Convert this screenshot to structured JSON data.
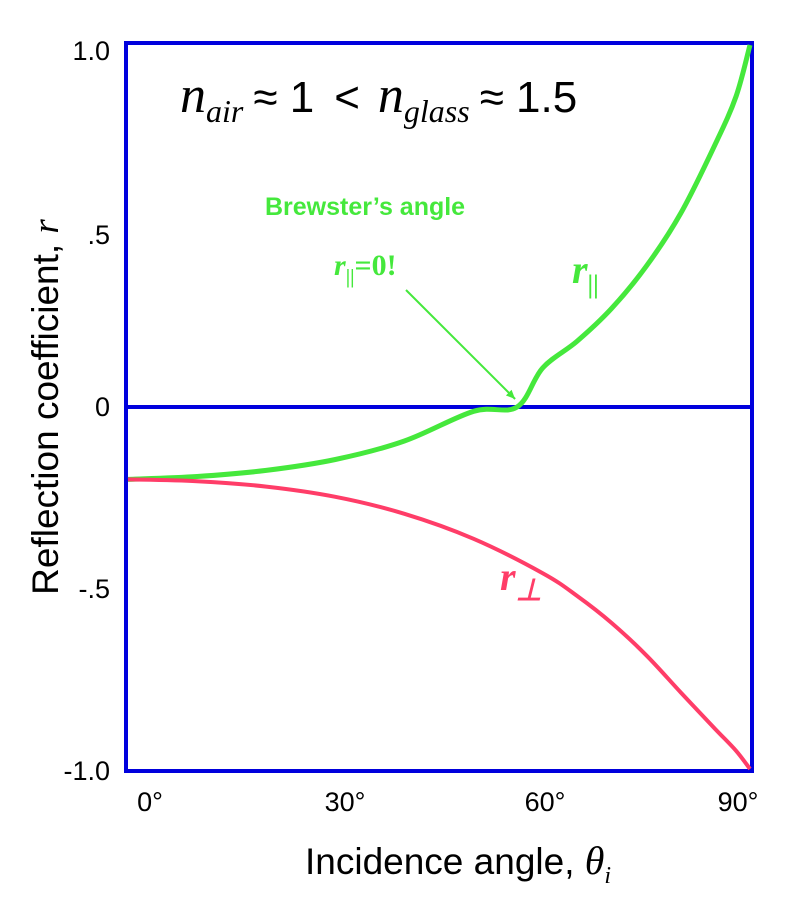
{
  "chart_data": {
    "type": "line",
    "xlabel": "Incidence angle,",
    "xlabel_symbol": "θ",
    "xlabel_symbol_sub": "i",
    "ylabel": "Reflection coefficient,",
    "ylabel_symbol": "r",
    "xlim": [
      0,
      90
    ],
    "ylim": [
      -1.0,
      1.0
    ],
    "x_ticks": [
      {
        "value": 0,
        "label": "0°"
      },
      {
        "value": 30,
        "label": "30°"
      },
      {
        "value": 60,
        "label": "60°"
      },
      {
        "value": 90,
        "label": "90°"
      }
    ],
    "y_ticks": [
      {
        "value": 1.0,
        "label": "1.0"
      },
      {
        "value": 0.5,
        "label": ".5"
      },
      {
        "value": 0,
        "label": "0"
      },
      {
        "value": -0.5,
        "label": "-.5"
      },
      {
        "value": -1.0,
        "label": "-1.0"
      }
    ],
    "equation": {
      "n1_sym": "n",
      "n1_sub": "air",
      "rel1": "≈ 1",
      "lt": "<",
      "n2_sym": "n",
      "n2_sub": "glass",
      "rel2": "≈ 1.5"
    },
    "zero_line": true,
    "grid": false,
    "series": [
      {
        "label_main": "r",
        "label_sub": "||",
        "color": "#45e83c",
        "x": [
          0,
          10,
          20,
          30,
          40,
          50,
          56.3,
          60,
          65,
          70,
          75,
          80,
          85,
          88,
          90
        ],
        "y": [
          -0.2,
          -0.192,
          -0.175,
          -0.145,
          -0.094,
          -0.012,
          0.0,
          0.108,
          0.182,
          0.273,
          0.389,
          0.536,
          0.727,
          0.859,
          1.0
        ]
      },
      {
        "label_main": "r",
        "label_sub": "⊥",
        "color": "#ff3d68",
        "x": [
          0,
          10,
          20,
          30,
          40,
          50,
          60,
          65,
          70,
          75,
          80,
          85,
          88,
          90
        ],
        "y": [
          -0.2,
          -0.205,
          -0.22,
          -0.248,
          -0.295,
          -0.364,
          -0.459,
          -0.522,
          -0.597,
          -0.686,
          -0.789,
          -0.89,
          -0.95,
          -1.0
        ]
      }
    ],
    "annotation": {
      "line1": "Brewster’s angle",
      "line2_main": "r",
      "line2_sub": "||",
      "line2_rest": "=0!",
      "color": "#45e83c",
      "arrow_to": {
        "x": 56.3,
        "y": 0
      }
    },
    "frame_color": "#0000dd"
  }
}
